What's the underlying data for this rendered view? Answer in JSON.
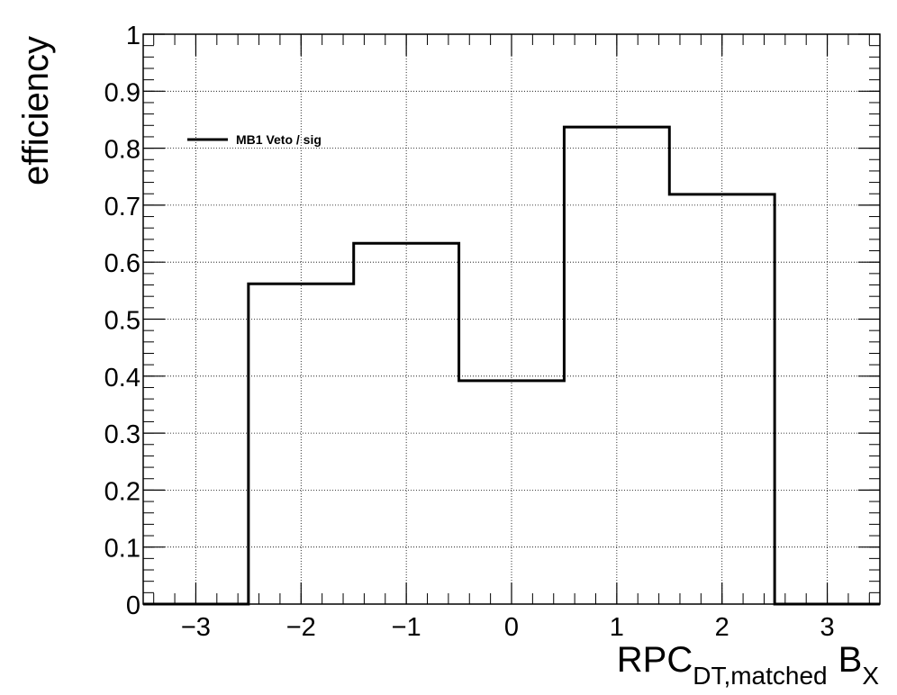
{
  "chart_data": {
    "type": "step",
    "title": "",
    "xlabel": "RPC",
    "xlabel_subscript": "DT,matched",
    "xlabel_suffix": "B",
    "xlabel_suffix_subscript": "X",
    "ylabel": "efficiency",
    "xlim": [
      -3.5,
      3.5
    ],
    "ylim": [
      0,
      1
    ],
    "grid": true,
    "legend_position": "top-left",
    "x_ticks": [
      -3,
      -2,
      -1,
      0,
      1,
      2,
      3
    ],
    "x_tick_labels": [
      "−3",
      "−2",
      "−1",
      "0",
      "1",
      "2",
      "3"
    ],
    "y_ticks": [
      0,
      0.1,
      0.2,
      0.3,
      0.4,
      0.5,
      0.6,
      0.7,
      0.8,
      0.9,
      1
    ],
    "y_tick_labels": [
      "0",
      "0.1",
      "0.2",
      "0.3",
      "0.4",
      "0.5",
      "0.6",
      "0.7",
      "0.8",
      "0.9",
      "1"
    ],
    "bin_edges": [
      -3.5,
      -2.5,
      -1.5,
      -0.5,
      0.5,
      1.5,
      2.5,
      3.5
    ],
    "series": [
      {
        "name": "MB1 Veto / sig",
        "color": "#000000",
        "values": [
          0,
          0.562,
          0.633,
          0.392,
          0.837,
          0.719,
          0
        ]
      }
    ]
  }
}
